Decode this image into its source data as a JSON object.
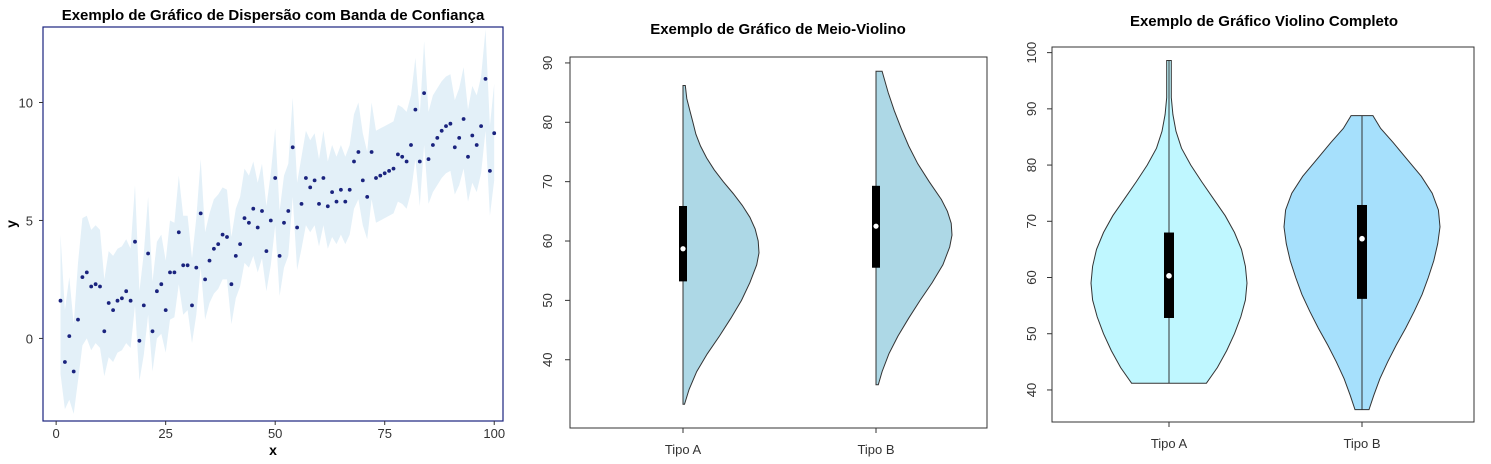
{
  "chart_data": [
    {
      "type": "scatter",
      "title": "Exemplo de Gráfico de Dispersão com Banda de Confiança",
      "xlabel": "x",
      "ylabel": "y",
      "xlim": [
        -3,
        102
      ],
      "ylim": [
        -3.5,
        13.2
      ],
      "xticks": [
        0,
        25,
        50,
        75,
        100
      ],
      "yticks": [
        0,
        5,
        10
      ],
      "colors": {
        "points": "#1a237e",
        "band": "#e3f0f8",
        "frame": "#1a237e"
      },
      "x": [
        1,
        2,
        3,
        4,
        5,
        6,
        7,
        8,
        9,
        10,
        11,
        12,
        13,
        14,
        15,
        16,
        17,
        18,
        19,
        20,
        21,
        22,
        23,
        24,
        25,
        26,
        27,
        28,
        29,
        30,
        31,
        32,
        33,
        34,
        35,
        36,
        37,
        38,
        39,
        40,
        41,
        42,
        43,
        44,
        45,
        46,
        47,
        48,
        49,
        50,
        51,
        52,
        53,
        54,
        55,
        56,
        57,
        58,
        59,
        60,
        61,
        62,
        63,
        64,
        65,
        66,
        67,
        68,
        69,
        70,
        71,
        72,
        73,
        74,
        75,
        76,
        77,
        78,
        79,
        80,
        81,
        82,
        83,
        84,
        85,
        86,
        87,
        88,
        89,
        90,
        91,
        92,
        93,
        94,
        95,
        96,
        97,
        98,
        99,
        100
      ],
      "y": [
        1.6,
        -1.0,
        0.1,
        -1.4,
        0.8,
        2.6,
        2.8,
        2.2,
        2.3,
        2.2,
        0.3,
        1.5,
        1.2,
        1.6,
        1.7,
        2.0,
        1.6,
        4.1,
        -0.1,
        1.4,
        3.6,
        0.3,
        2.0,
        2.3,
        1.2,
        2.8,
        2.8,
        4.5,
        3.1,
        3.1,
        1.4,
        3.0,
        5.3,
        2.5,
        3.3,
        3.8,
        4.0,
        4.4,
        4.3,
        2.3,
        3.5,
        4.0,
        5.1,
        4.9,
        5.5,
        4.7,
        5.4,
        3.7,
        5.0,
        6.8,
        3.5,
        4.9,
        5.4,
        8.1,
        4.7,
        5.7,
        6.8,
        6.4,
        6.7,
        5.7,
        6.8,
        5.6,
        6.2,
        5.8,
        6.3,
        5.8,
        6.3,
        7.5,
        7.9,
        6.7,
        6.0,
        7.9,
        6.8,
        6.9,
        7.0,
        7.1,
        7.2,
        7.8,
        7.7,
        7.5,
        8.2,
        9.7,
        7.5,
        10.4,
        7.6,
        8.2,
        8.5,
        8.8,
        9.0,
        9.1,
        8.1,
        8.5,
        9.3,
        7.7,
        8.6,
        8.2,
        9.0,
        11.0,
        7.1,
        8.7
      ],
      "band_lower": [
        -1.5,
        -3.0,
        -2.6,
        -3.2,
        -1.8,
        -0.3,
        0.0,
        -0.5,
        -0.2,
        -0.4,
        -1.6,
        -0.8,
        -1.0,
        -0.6,
        -0.5,
        -0.2,
        -0.4,
        1.4,
        -1.8,
        -0.7,
        1.0,
        -1.4,
        0.0,
        0.2,
        -0.6,
        0.8,
        0.9,
        2.3,
        1.0,
        1.2,
        -0.2,
        1.0,
        3.0,
        0.8,
        1.5,
        1.9,
        2.1,
        2.5,
        2.5,
        0.6,
        1.7,
        2.2,
        3.2,
        3.0,
        3.5,
        2.8,
        3.4,
        2.0,
        3.1,
        4.8,
        1.8,
        3.0,
        3.5,
        6.0,
        2.9,
        3.8,
        4.8,
        4.5,
        4.8,
        3.9,
        4.8,
        3.8,
        4.3,
        4.0,
        4.4,
        4.0,
        4.4,
        5.5,
        5.9,
        4.8,
        4.2,
        5.9,
        4.9,
        5.0,
        5.1,
        5.2,
        5.3,
        5.8,
        5.7,
        5.5,
        6.2,
        7.6,
        5.6,
        8.2,
        5.7,
        6.2,
        6.5,
        6.8,
        7.0,
        7.1,
        6.1,
        6.5,
        7.2,
        5.8,
        6.6,
        6.2,
        7.0,
        8.8,
        5.2,
        6.7
      ],
      "band_upper": [
        4.4,
        1.2,
        2.6,
        0.6,
        3.2,
        5.1,
        5.2,
        4.6,
        4.8,
        4.6,
        2.5,
        3.7,
        3.5,
        3.8,
        3.9,
        4.2,
        3.8,
        6.5,
        2.0,
        3.6,
        6.0,
        2.4,
        4.1,
        4.4,
        3.3,
        5.0,
        4.9,
        6.9,
        5.2,
        5.2,
        3.4,
        5.1,
        7.6,
        4.5,
        5.3,
        5.9,
        6.1,
        6.4,
        6.3,
        4.3,
        5.5,
        6.0,
        7.2,
        6.9,
        7.5,
        6.6,
        7.4,
        5.6,
        7.0,
        8.9,
        5.4,
        6.9,
        7.4,
        10.2,
        6.6,
        7.7,
        8.8,
        8.4,
        8.7,
        7.6,
        8.8,
        7.5,
        8.2,
        7.7,
        8.2,
        7.7,
        8.2,
        9.5,
        10.0,
        8.7,
        7.9,
        10.0,
        8.8,
        8.9,
        9.0,
        9.1,
        9.2,
        9.9,
        9.8,
        9.6,
        10.3,
        11.9,
        9.5,
        12.6,
        9.6,
        10.3,
        10.6,
        10.9,
        11.1,
        11.2,
        10.1,
        10.6,
        11.5,
        9.7,
        10.7,
        10.3,
        11.1,
        13.1,
        9.0,
        10.8
      ]
    },
    {
      "type": "half-violin",
      "title": "Exemplo de Gráfico de Meio-Violino",
      "categories": [
        "Tipo A",
        "Tipo B"
      ],
      "ylim": [
        28.5,
        91
      ],
      "yticks": [
        40,
        50,
        60,
        70,
        80,
        90
      ],
      "colors": {
        "fill": "#add8e6",
        "outline": "#333333",
        "box": "#000000",
        "median": "#ffffff"
      },
      "series": [
        {
          "min": 32.5,
          "max": 86.2,
          "q1": 53.2,
          "median": 58.7,
          "q3": 65.9,
          "profile_y": [
            32.5,
            35,
            38,
            41,
            44,
            47,
            50,
            53,
            56,
            58,
            60,
            62,
            64,
            66,
            68,
            70,
            72,
            74,
            76,
            78,
            80,
            82,
            84,
            86.2
          ],
          "profile_w": [
            0.02,
            0.08,
            0.18,
            0.32,
            0.48,
            0.63,
            0.77,
            0.88,
            0.97,
            1.0,
            0.99,
            0.95,
            0.88,
            0.78,
            0.66,
            0.53,
            0.41,
            0.31,
            0.23,
            0.17,
            0.13,
            0.09,
            0.05,
            0.03
          ]
        },
        {
          "min": 35.8,
          "max": 88.6,
          "q1": 55.5,
          "median": 62.5,
          "q3": 69.3,
          "profile_y": [
            35.8,
            38,
            41,
            44,
            47,
            50,
            53,
            56,
            59,
            61,
            63,
            65,
            67,
            70,
            73,
            76,
            79,
            82,
            85,
            88.6
          ],
          "profile_w": [
            0.03,
            0.08,
            0.17,
            0.29,
            0.43,
            0.58,
            0.74,
            0.88,
            0.97,
            1.0,
            0.99,
            0.94,
            0.86,
            0.7,
            0.55,
            0.43,
            0.33,
            0.24,
            0.16,
            0.08
          ]
        }
      ]
    },
    {
      "type": "violin",
      "title": "Exemplo de Gráfico Violino Completo",
      "categories": [
        "Tipo A",
        "Tipo B"
      ],
      "ylim": [
        34.3,
        101
      ],
      "yticks": [
        40,
        50,
        60,
        70,
        80,
        90,
        100
      ],
      "colors": {
        "fill_a": "#bff7ff",
        "fill_b": "#a6e0fc",
        "outline": "#333333",
        "box": "#000000",
        "median": "#ffffff"
      },
      "series": [
        {
          "min": 41.2,
          "max": 98.6,
          "q1": 52.8,
          "median": 60.3,
          "q3": 68.0,
          "profile_y": [
            41.2,
            44,
            47,
            50,
            53,
            56,
            59,
            62,
            65,
            68,
            71,
            74,
            77,
            80,
            83,
            86,
            89,
            92,
            95,
            98.6
          ],
          "profile_w": [
            0.48,
            0.62,
            0.74,
            0.84,
            0.92,
            0.98,
            1.0,
            0.98,
            0.93,
            0.84,
            0.72,
            0.57,
            0.42,
            0.28,
            0.16,
            0.09,
            0.05,
            0.03,
            0.03,
            0.03
          ]
        },
        {
          "min": 36.5,
          "max": 88.8,
          "q1": 56.2,
          "median": 66.9,
          "q3": 72.9,
          "profile_y": [
            36.5,
            39,
            42,
            45,
            48,
            51,
            54,
            57,
            60,
            63,
            66,
            69,
            72,
            75,
            78,
            81,
            84,
            86.5,
            88.8
          ],
          "profile_w": [
            0.09,
            0.15,
            0.23,
            0.33,
            0.44,
            0.56,
            0.67,
            0.77,
            0.85,
            0.92,
            0.97,
            1.0,
            0.98,
            0.9,
            0.76,
            0.58,
            0.4,
            0.24,
            0.14
          ]
        }
      ]
    }
  ]
}
